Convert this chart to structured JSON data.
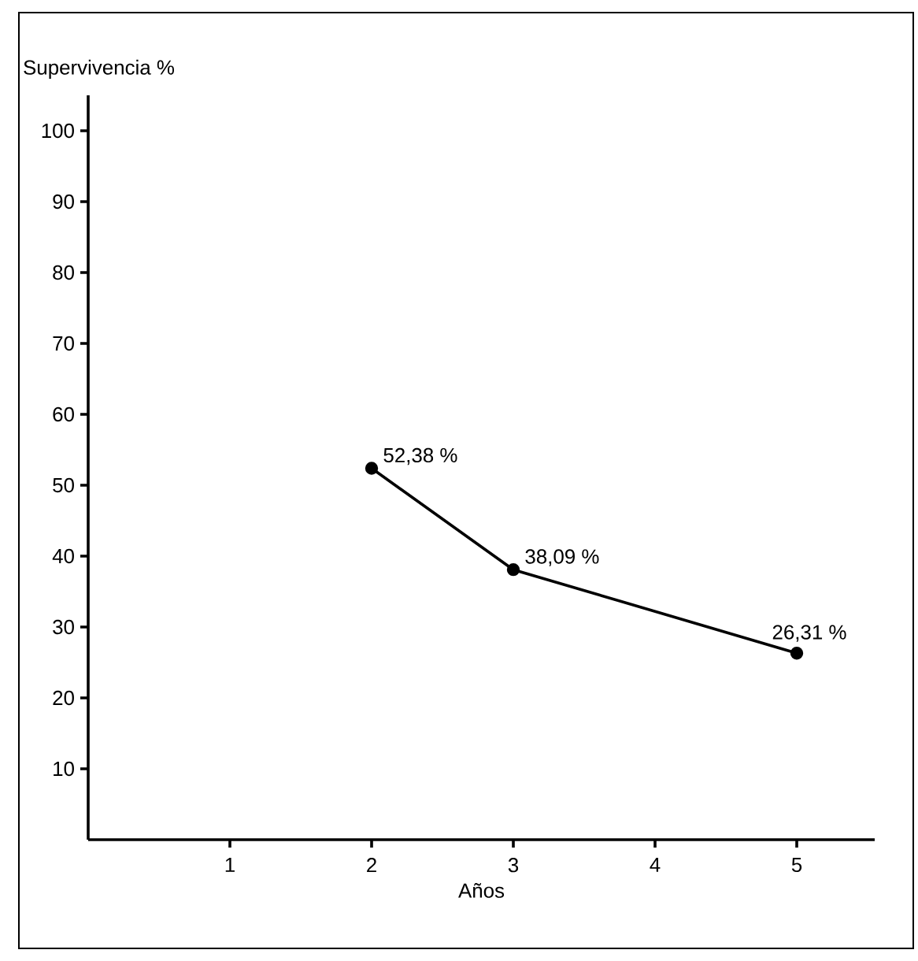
{
  "chart_data": {
    "type": "line",
    "xlabel": "Años",
    "ylabel": "Supervivencia %",
    "x": [
      2,
      3,
      5
    ],
    "values": [
      52.38,
      38.09,
      26.31
    ],
    "value_labels": [
      "52,38 %",
      "38,09 %",
      "26,31 %"
    ],
    "color": "#000000",
    "marker": "circle",
    "line_style": "solid",
    "grid": false,
    "xlim": [
      0,
      5.55
    ],
    "xticks": [
      1,
      2,
      3,
      4,
      5
    ],
    "ylim": [
      0,
      105
    ],
    "yticks": [
      10,
      20,
      30,
      40,
      50,
      60,
      70,
      80,
      90,
      100
    ]
  }
}
